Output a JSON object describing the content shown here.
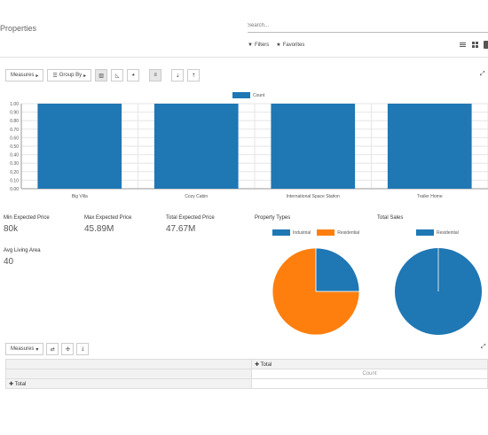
{
  "header": {
    "title": "Properties",
    "search_placeholder": "Search...",
    "filters_label": "Filters",
    "favorites_label": "Favorites"
  },
  "toolbar": {
    "measures_label": "Measures",
    "group_by_label": "Group By"
  },
  "bar_chart": {
    "legend": "Count",
    "color": "#1f77b4"
  },
  "chart_data": [
    {
      "type": "bar",
      "categories": [
        "Big Villa",
        "Cozy Cabin",
        "International Space Station",
        "Trailer Home"
      ],
      "series": [
        {
          "name": "Count",
          "values": [
            1,
            1,
            1,
            1
          ]
        }
      ],
      "ylim": [
        0,
        1
      ],
      "yticks": [
        "0.00",
        "0.10",
        "0.20",
        "0.30",
        "0.40",
        "0.50",
        "0.60",
        "0.70",
        "0.80",
        "0.90",
        "1.00"
      ],
      "legend_position": "top-center",
      "grid": true
    },
    {
      "type": "pie",
      "title": "Property Types",
      "labels": [
        "Industrial",
        "Residential"
      ],
      "values": [
        1,
        3
      ],
      "colors": [
        "#1f77b4",
        "#ff7f0e"
      ]
    },
    {
      "type": "pie",
      "title": "Total Sales",
      "labels": [
        "Residential"
      ],
      "values": [
        1
      ],
      "colors": [
        "#1f77b4"
      ]
    }
  ],
  "kpis": {
    "min_price": {
      "label": "Min Expected Price",
      "value": "80k"
    },
    "max_price": {
      "label": "Max Expected Price",
      "value": "45.89M"
    },
    "total_price": {
      "label": "Total Expected Price",
      "value": "47.67M"
    },
    "avg_area": {
      "label": "Avg Living Area",
      "value": "40"
    }
  },
  "pivot": {
    "measures_label": "Measures",
    "col_header": "Total",
    "measure_header": "Count",
    "row_header": "Total"
  }
}
